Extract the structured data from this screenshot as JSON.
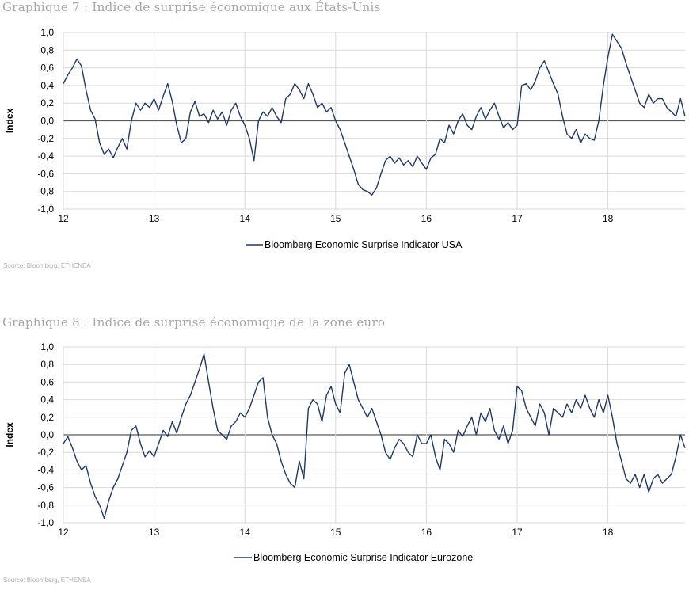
{
  "charts": [
    {
      "title": "Graphique 7 : Indice de surprise économique aux États-Unis",
      "source": "Source: Bloomberg, ETHENEA"
    },
    {
      "title": "Graphique 8 : Indice de surprise économique de la zone euro",
      "source": "Source: Bloomberg, ETHENEA"
    }
  ],
  "colors": {
    "series": "#1f3864",
    "grid": "#d9d9d9",
    "zero": "#595959"
  },
  "chart_data": [
    {
      "type": "line",
      "title": "Graphique 7 : Indice de surprise économique aux États-Unis",
      "ylabel": "Index",
      "ylim": [
        -1.0,
        1.0
      ],
      "ytick_labels": [
        "1,0",
        "0,8",
        "0,6",
        "0,4",
        "0,2",
        "0,0",
        "-0,2",
        "-0,4",
        "-0,6",
        "-0,8",
        "-1,0"
      ],
      "xtick_labels": [
        "12",
        "13",
        "14",
        "15",
        "16",
        "17",
        "18"
      ],
      "xlim": [
        12,
        18.85
      ],
      "grid": true,
      "legend": "bottom-center",
      "series": [
        {
          "name": "Bloomberg Economic Surprise Indicator USA",
          "x": [
            12.0,
            12.05,
            12.1,
            12.15,
            12.2,
            12.25,
            12.3,
            12.35,
            12.4,
            12.45,
            12.5,
            12.55,
            12.6,
            12.65,
            12.7,
            12.75,
            12.8,
            12.85,
            12.9,
            12.95,
            13.0,
            13.05,
            13.1,
            13.15,
            13.2,
            13.25,
            13.3,
            13.35,
            13.4,
            13.45,
            13.5,
            13.55,
            13.6,
            13.65,
            13.7,
            13.75,
            13.8,
            13.85,
            13.9,
            13.95,
            14.0,
            14.05,
            14.1,
            14.15,
            14.2,
            14.25,
            14.3,
            14.35,
            14.4,
            14.45,
            14.5,
            14.55,
            14.6,
            14.65,
            14.7,
            14.75,
            14.8,
            14.85,
            14.9,
            14.95,
            15.0,
            15.05,
            15.1,
            15.15,
            15.2,
            15.25,
            15.3,
            15.35,
            15.4,
            15.45,
            15.5,
            15.55,
            15.6,
            15.65,
            15.7,
            15.75,
            15.8,
            15.85,
            15.9,
            15.95,
            16.0,
            16.05,
            16.1,
            16.15,
            16.2,
            16.25,
            16.3,
            16.35,
            16.4,
            16.45,
            16.5,
            16.55,
            16.6,
            16.65,
            16.7,
            16.75,
            16.8,
            16.85,
            16.9,
            16.95,
            17.0,
            17.05,
            17.1,
            17.15,
            17.2,
            17.25,
            17.3,
            17.35,
            17.4,
            17.45,
            17.5,
            17.55,
            17.6,
            17.65,
            17.7,
            17.75,
            17.8,
            17.85,
            17.9,
            17.95,
            18.0,
            18.05,
            18.1,
            18.15,
            18.2,
            18.25,
            18.3,
            18.35,
            18.4,
            18.45,
            18.5,
            18.55,
            18.6,
            18.65,
            18.7,
            18.75,
            18.8,
            18.85
          ],
          "y": [
            0.42,
            0.52,
            0.6,
            0.7,
            0.62,
            0.35,
            0.12,
            0.02,
            -0.25,
            -0.38,
            -0.32,
            -0.42,
            -0.3,
            -0.2,
            -0.32,
            0.0,
            0.2,
            0.12,
            0.2,
            0.15,
            0.25,
            0.12,
            0.28,
            0.42,
            0.22,
            -0.05,
            -0.25,
            -0.2,
            0.1,
            0.22,
            0.05,
            0.08,
            -0.02,
            0.12,
            0.02,
            0.1,
            -0.05,
            0.12,
            0.2,
            0.05,
            -0.05,
            -0.2,
            -0.45,
            0.0,
            0.1,
            0.05,
            0.15,
            0.05,
            -0.02,
            0.25,
            0.3,
            0.42,
            0.35,
            0.25,
            0.42,
            0.3,
            0.15,
            0.2,
            0.1,
            0.15,
            0.0,
            -0.1,
            -0.25,
            -0.4,
            -0.55,
            -0.72,
            -0.78,
            -0.8,
            -0.84,
            -0.76,
            -0.6,
            -0.45,
            -0.4,
            -0.48,
            -0.42,
            -0.5,
            -0.45,
            -0.52,
            -0.4,
            -0.48,
            -0.55,
            -0.42,
            -0.38,
            -0.2,
            -0.25,
            -0.05,
            -0.15,
            0.0,
            0.08,
            -0.05,
            -0.1,
            0.05,
            0.15,
            0.02,
            0.12,
            0.2,
            0.05,
            -0.08,
            -0.02,
            -0.1,
            -0.05,
            0.4,
            0.42,
            0.35,
            0.45,
            0.6,
            0.68,
            0.55,
            0.42,
            0.3,
            0.05,
            -0.15,
            -0.2,
            -0.1,
            -0.25,
            -0.15,
            -0.2,
            -0.22,
            0.0,
            0.4,
            0.72,
            0.98,
            0.9,
            0.82,
            0.65,
            0.5,
            0.35,
            0.2,
            0.15,
            0.3,
            0.2,
            0.25,
            0.25,
            0.15,
            0.1,
            0.05,
            0.25,
            0.05
          ]
        }
      ]
    },
    {
      "type": "line",
      "title": "Graphique 8 : Indice de surprise économique de la zone euro",
      "ylabel": "Index",
      "ylim": [
        -1.0,
        1.0
      ],
      "ytick_labels": [
        "1,0",
        "0,8",
        "0,6",
        "0,4",
        "0,2",
        "0,0",
        "-0,2",
        "-0,4",
        "-0,6",
        "-0,8",
        "-1,0"
      ],
      "xtick_labels": [
        "12",
        "13",
        "14",
        "15",
        "16",
        "17",
        "18"
      ],
      "xlim": [
        12,
        18.85
      ],
      "grid": true,
      "legend": "bottom-center",
      "series": [
        {
          "name": "Bloomberg Economic Surprise Indicator Eurozone",
          "x": [
            12.0,
            12.05,
            12.1,
            12.15,
            12.2,
            12.25,
            12.3,
            12.35,
            12.4,
            12.45,
            12.5,
            12.55,
            12.6,
            12.65,
            12.7,
            12.75,
            12.8,
            12.85,
            12.9,
            12.95,
            13.0,
            13.05,
            13.1,
            13.15,
            13.2,
            13.25,
            13.3,
            13.35,
            13.4,
            13.45,
            13.5,
            13.55,
            13.6,
            13.65,
            13.7,
            13.75,
            13.8,
            13.85,
            13.9,
            13.95,
            14.0,
            14.05,
            14.1,
            14.15,
            14.2,
            14.25,
            14.3,
            14.35,
            14.4,
            14.45,
            14.5,
            14.55,
            14.6,
            14.65,
            14.7,
            14.75,
            14.8,
            14.85,
            14.9,
            14.95,
            15.0,
            15.05,
            15.1,
            15.15,
            15.2,
            15.25,
            15.3,
            15.35,
            15.4,
            15.45,
            15.5,
            15.55,
            15.6,
            15.65,
            15.7,
            15.75,
            15.8,
            15.85,
            15.9,
            15.95,
            16.0,
            16.05,
            16.1,
            16.15,
            16.2,
            16.25,
            16.3,
            16.35,
            16.4,
            16.45,
            16.5,
            16.55,
            16.6,
            16.65,
            16.7,
            16.75,
            16.8,
            16.85,
            16.9,
            16.95,
            17.0,
            17.05,
            17.1,
            17.15,
            17.2,
            17.25,
            17.3,
            17.35,
            17.4,
            17.45,
            17.5,
            17.55,
            17.6,
            17.65,
            17.7,
            17.75,
            17.8,
            17.85,
            17.9,
            17.95,
            18.0,
            18.05,
            18.1,
            18.15,
            18.2,
            18.25,
            18.3,
            18.35,
            18.4,
            18.45,
            18.5,
            18.55,
            18.6,
            18.65,
            18.7,
            18.75,
            18.8,
            18.85
          ],
          "y": [
            -0.1,
            -0.02,
            -0.15,
            -0.3,
            -0.4,
            -0.35,
            -0.55,
            -0.7,
            -0.8,
            -0.95,
            -0.75,
            -0.6,
            -0.5,
            -0.35,
            -0.2,
            0.05,
            0.1,
            -0.1,
            -0.25,
            -0.18,
            -0.25,
            -0.1,
            0.05,
            -0.02,
            0.15,
            0.02,
            0.2,
            0.35,
            0.45,
            0.6,
            0.75,
            0.92,
            0.6,
            0.3,
            0.05,
            0.0,
            -0.05,
            0.1,
            0.15,
            0.25,
            0.2,
            0.3,
            0.45,
            0.6,
            0.65,
            0.2,
            0.0,
            -0.1,
            -0.3,
            -0.45,
            -0.55,
            -0.6,
            -0.3,
            -0.5,
            0.3,
            0.4,
            0.35,
            0.15,
            0.45,
            0.55,
            0.35,
            0.25,
            0.7,
            0.8,
            0.6,
            0.4,
            0.3,
            0.2,
            0.3,
            0.15,
            0.0,
            -0.2,
            -0.28,
            -0.15,
            -0.05,
            -0.1,
            -0.2,
            -0.25,
            0.0,
            -0.1,
            -0.1,
            0.0,
            -0.25,
            -0.4,
            -0.05,
            -0.1,
            -0.2,
            0.05,
            -0.02,
            0.1,
            0.2,
            0.0,
            0.25,
            0.15,
            0.3,
            0.05,
            -0.05,
            0.1,
            -0.1,
            0.05,
            0.55,
            0.5,
            0.3,
            0.2,
            0.1,
            0.35,
            0.25,
            0.0,
            0.3,
            0.25,
            0.2,
            0.35,
            0.25,
            0.4,
            0.3,
            0.45,
            0.3,
            0.2,
            0.4,
            0.25,
            0.45,
            0.2,
            -0.1,
            -0.3,
            -0.5,
            -0.55,
            -0.45,
            -0.6,
            -0.45,
            -0.65,
            -0.5,
            -0.45,
            -0.55,
            -0.5,
            -0.45,
            -0.25,
            0.0,
            -0.15
          ]
        }
      ]
    }
  ]
}
